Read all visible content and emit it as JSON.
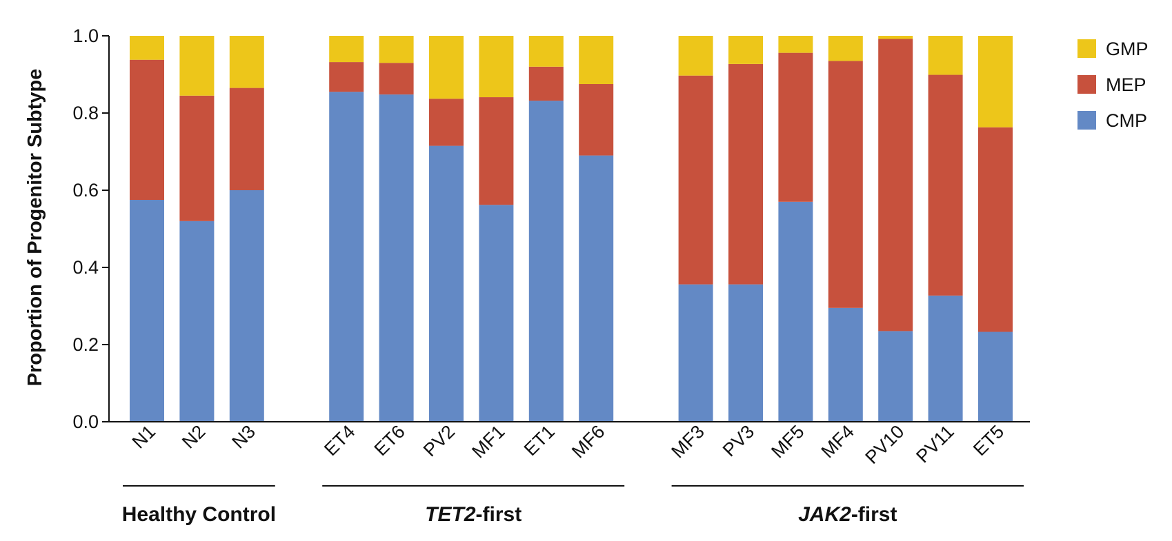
{
  "chart_data": {
    "type": "bar",
    "stacked": true,
    "ylabel": "Proportion of Progenitor Subtype",
    "ylim": [
      0,
      1
    ],
    "yticks": [
      "0.0",
      "0.2",
      "0.4",
      "0.6",
      "0.8",
      "1.0"
    ],
    "categories": [
      "N1",
      "N2",
      "N3",
      "ET4",
      "ET6",
      "PV2",
      "MF1",
      "ET1",
      "MF6",
      "MF3",
      "PV3",
      "MF5",
      "MF4",
      "PV10",
      "PV11",
      "ET5"
    ],
    "groups": [
      {
        "italic": "",
        "rest": "Healthy Control",
        "members": [
          "N1",
          "N2",
          "N3"
        ]
      },
      {
        "italic": "TET2",
        "rest": "-first",
        "members": [
          "ET4",
          "ET6",
          "PV2",
          "MF1",
          "ET1",
          "MF6"
        ]
      },
      {
        "italic": "JAK2",
        "rest": "-first",
        "members": [
          "MF3",
          "PV3",
          "MF5",
          "MF4",
          "PV10",
          "PV11",
          "ET5"
        ]
      }
    ],
    "series": [
      {
        "name": "CMP",
        "color": "#6389c5",
        "values": [
          0.575,
          0.52,
          0.6,
          0.855,
          0.848,
          0.715,
          0.562,
          0.832,
          0.69,
          0.356,
          0.356,
          0.57,
          0.295,
          0.235,
          0.327,
          0.233
        ]
      },
      {
        "name": "MEP",
        "color": "#c7513d",
        "values": [
          0.363,
          0.325,
          0.265,
          0.077,
          0.082,
          0.122,
          0.279,
          0.088,
          0.185,
          0.541,
          0.571,
          0.386,
          0.64,
          0.757,
          0.572,
          0.53
        ]
      },
      {
        "name": "GMP",
        "color": "#edc61a",
        "values": [
          0.062,
          0.155,
          0.135,
          0.068,
          0.07,
          0.163,
          0.159,
          0.08,
          0.125,
          0.103,
          0.073,
          0.044,
          0.065,
          0.008,
          0.101,
          0.237
        ]
      }
    ],
    "legend": {
      "placement": "top-right",
      "items": [
        {
          "name": "GMP",
          "color": "#edc61a"
        },
        {
          "name": "MEP",
          "color": "#c7513d"
        },
        {
          "name": "CMP",
          "color": "#6389c5"
        }
      ]
    },
    "grid": false
  }
}
